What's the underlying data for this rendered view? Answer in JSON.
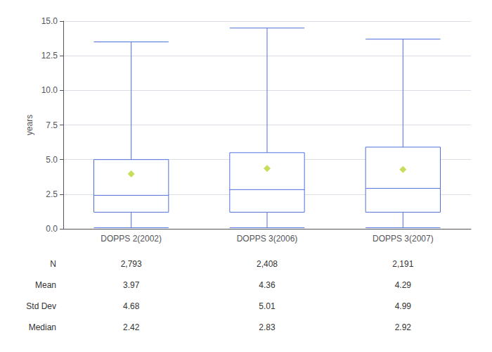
{
  "chart_data": {
    "type": "box",
    "ylabel": "years",
    "categories": [
      "DOPPS 2(2002)",
      "DOPPS 3(2006)",
      "DOPPS 3(2007)"
    ],
    "boxes": [
      {
        "whisker_low": 0.08,
        "q1": 1.2,
        "median": 2.42,
        "q3": 5.0,
        "whisker_high": 13.5
      },
      {
        "whisker_low": 0.08,
        "q1": 1.2,
        "median": 2.83,
        "q3": 5.5,
        "whisker_high": 14.5
      },
      {
        "whisker_low": 0.08,
        "q1": 1.2,
        "median": 2.92,
        "q3": 5.9,
        "whisker_high": 13.7
      }
    ],
    "means": [
      3.97,
      4.36,
      4.29
    ],
    "ylim": [
      0.0,
      15.0
    ],
    "yticks": [
      {
        "value": 0.0,
        "label": "0.0"
      },
      2.5,
      {
        "value": 5.0,
        "label": "5.0"
      },
      7.5,
      {
        "value": 10.0,
        "label": "10.0"
      },
      12.5,
      {
        "value": 15.0,
        "label": "15.0"
      }
    ],
    "grid": true,
    "table": [
      {
        "label": "N",
        "cells": [
          "2,793",
          "2,408",
          "2,191"
        ]
      },
      {
        "label": "Mean",
        "cells": [
          "3.97",
          "4.36",
          "4.29"
        ]
      },
      {
        "label": "Std Dev",
        "cells": [
          "4.68",
          "5.01",
          "4.99"
        ]
      },
      {
        "label": "Median",
        "cells": [
          "2.42",
          "2.83",
          "2.92"
        ]
      }
    ]
  }
}
